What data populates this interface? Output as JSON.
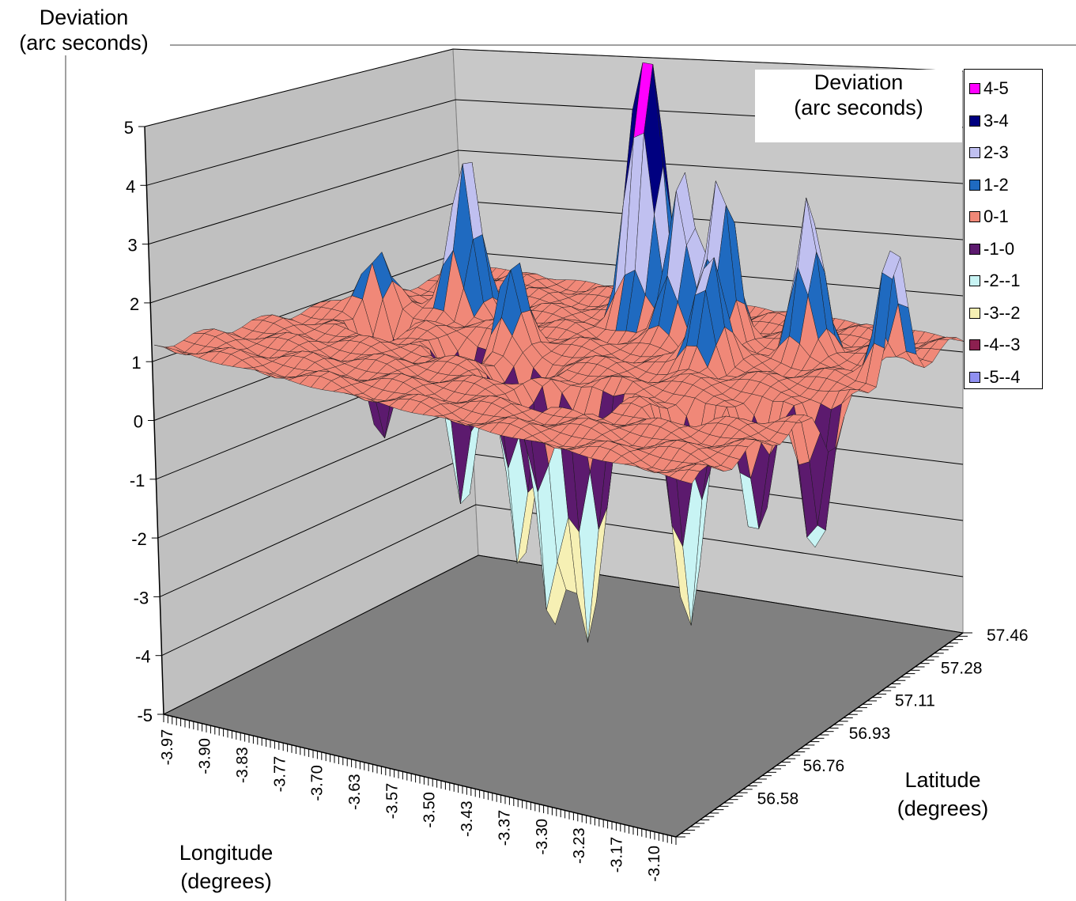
{
  "chart_data": {
    "type": "surface3d",
    "title": [
      "Deviation",
      "(arc seconds)"
    ],
    "zlabel": [
      "Deviation",
      "(arc seconds)"
    ],
    "xlabel": [
      "Longitude",
      "(degrees)"
    ],
    "ylabel": [
      "Latitude",
      "(degrees)"
    ],
    "zlim": [
      -5,
      5
    ],
    "z_ticks": [
      "5",
      "4",
      "3",
      "2",
      "1",
      "0",
      "-1",
      "-2",
      "-3",
      "-4",
      "-5"
    ],
    "x_ticks": [
      "-3.97",
      "-3.90",
      "-3.83",
      "-3.77",
      "-3.70",
      "-3.63",
      "-3.57",
      "-3.50",
      "-3.43",
      "-3.37",
      "-3.30",
      "-3.23",
      "-3.17",
      "-3.10"
    ],
    "y_ticks": [
      "56.58",
      "56.76",
      "56.93",
      "57.11",
      "57.28",
      "57.46"
    ],
    "legend": [
      {
        "label": "4-5",
        "color": "#FF00FF"
      },
      {
        "label": "3-4",
        "color": "#000080"
      },
      {
        "label": "2-3",
        "color": "#C0C0F0"
      },
      {
        "label": "1-2",
        "color": "#1F6AC0"
      },
      {
        "label": "0-1",
        "color": "#F08878"
      },
      {
        "label": "-1-0",
        "color": "#5C1A6E"
      },
      {
        "label": "-2--1",
        "color": "#C8F4F4"
      },
      {
        "label": "-3--2",
        "color": "#F6F0B4"
      },
      {
        "label": "-4--3",
        "color": "#8C2050"
      },
      {
        "label": "-5--4",
        "color": "#9090F0"
      }
    ],
    "legend_position": "right",
    "grid": true,
    "peaks": [
      {
        "lon": -3.58,
        "lat": 57.25,
        "z": 4.4
      },
      {
        "lon": -3.55,
        "lat": 57.24,
        "z": 4.2
      },
      {
        "lon": -3.48,
        "lat": 57.2,
        "z": 3.6
      },
      {
        "lon": -3.42,
        "lat": 57.22,
        "z": 3.4
      },
      {
        "lon": -3.81,
        "lat": 57.1,
        "z": 3.3
      },
      {
        "lon": -3.28,
        "lat": 57.25,
        "z": 3.2
      },
      {
        "lon": -3.11,
        "lat": 57.2,
        "z": 2.8
      },
      {
        "lon": -3.36,
        "lat": 57.05,
        "z": 2.6
      },
      {
        "lon": -3.65,
        "lat": 56.95,
        "z": 2.0
      },
      {
        "lon": -3.9,
        "lat": 56.98,
        "z": 1.6
      },
      {
        "lon": -3.46,
        "lat": 56.7,
        "z": -3.7
      },
      {
        "lon": -3.41,
        "lat": 56.72,
        "z": -3.6
      },
      {
        "lon": -3.27,
        "lat": 56.78,
        "z": -3.4
      },
      {
        "lon": -3.57,
        "lat": 56.82,
        "z": -3.2
      },
      {
        "lon": -3.13,
        "lat": 56.95,
        "z": -2.2
      },
      {
        "lon": -3.7,
        "lat": 56.88,
        "z": -2.4
      },
      {
        "lon": -3.85,
        "lat": 56.9,
        "z": -1.5
      },
      {
        "lon": -3.2,
        "lat": 56.88,
        "z": -1.9
      }
    ]
  }
}
